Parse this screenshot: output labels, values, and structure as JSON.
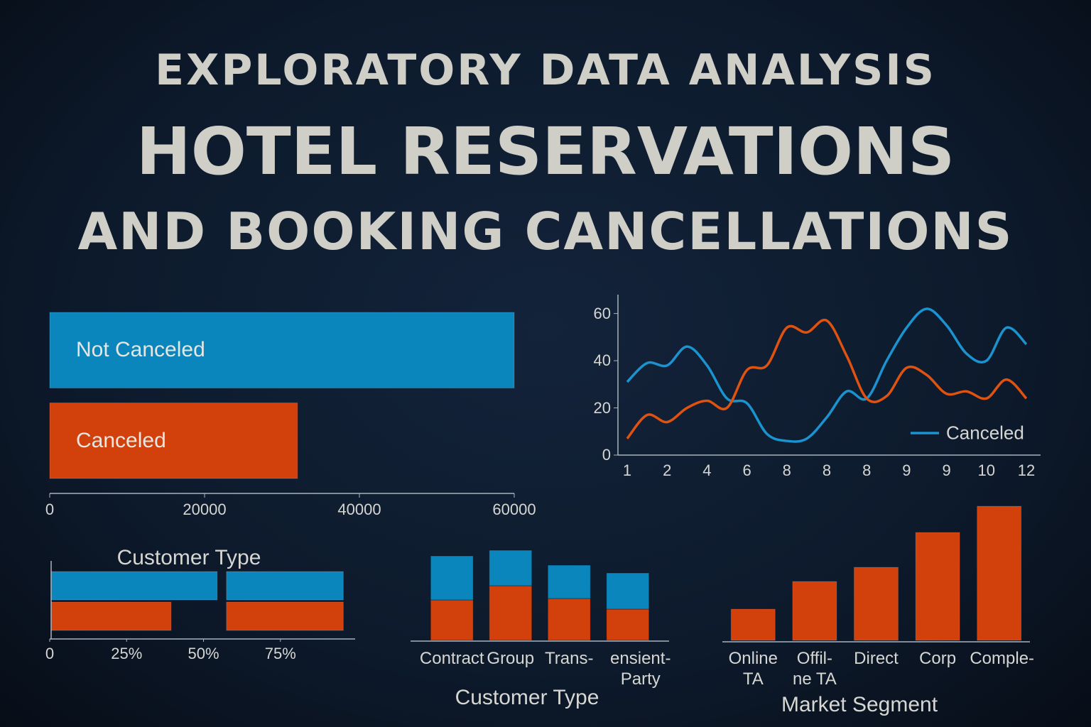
{
  "header": {
    "kicker": "EXPLORATORY DATA ANALYSIS",
    "title": "HOTEL RESERVATIONS",
    "subtitle": "AND BOOKING CANCELLATIONS"
  },
  "chart_data": [
    {
      "type": "hbar",
      "categories": [
        "Not Canceled",
        "Canceled"
      ],
      "values": [
        60000,
        32000
      ],
      "colors": [
        "#0b86bd",
        "#d2400c"
      ],
      "xlim": [
        0,
        60000
      ],
      "xticks": [
        0,
        20000,
        40000,
        60000
      ]
    },
    {
      "type": "line",
      "categories": [
        "1",
        null,
        "2",
        null,
        "4",
        null,
        "6",
        null,
        "8",
        null,
        "8",
        null,
        "8",
        null,
        "9",
        null,
        "9",
        null,
        "10",
        null,
        "12"
      ],
      "series": [
        {
          "name": "Canceled",
          "color": "#1a93cf",
          "values": [
            31,
            39,
            38,
            46,
            38,
            24,
            22,
            9,
            6,
            7,
            16,
            27,
            24,
            40,
            54,
            62,
            55,
            43,
            40,
            54,
            47
          ]
        },
        {
          "color": "#e0520f",
          "values": [
            7,
            17,
            14,
            20,
            23,
            20,
            36,
            38,
            54,
            52,
            57,
            42,
            24,
            25,
            37,
            34,
            26,
            27,
            24,
            32,
            24
          ]
        }
      ],
      "ylim": [
        0,
        68
      ],
      "yticks": [
        0,
        20,
        40,
        60
      ],
      "legend": "lower right"
    },
    {
      "type": "range-hbar",
      "title": "Customer Type",
      "series": [
        {
          "color": "#0b86bd",
          "values": [
            [
              0,
              54
            ],
            [
              57,
              95
            ]
          ]
        },
        {
          "color": "#d2400c",
          "values": [
            [
              0,
              39
            ],
            [
              57,
              95
            ]
          ]
        }
      ],
      "xlim": [
        0,
        100
      ],
      "xticks": [
        0,
        {
          "value": 25,
          "label": "25%"
        },
        {
          "value": 50,
          "label": "50%"
        },
        {
          "value": 75,
          "label": "75%"
        }
      ]
    },
    {
      "type": "stacked-bar",
      "categories": [
        "Contract",
        "Group",
        "Trans-",
        "ensient-\nParty"
      ],
      "xlabel": "Customer Type",
      "series": [
        {
          "color": "#d2400c",
          "values": [
            57,
            77,
            59,
            44
          ]
        },
        {
          "color": "#0b86bd",
          "values": [
            62,
            50,
            47,
            51
          ]
        }
      ],
      "ylim": [
        0,
        130
      ]
    },
    {
      "type": "bar",
      "categories": [
        "Online\nTA",
        "Offil-\nne TA",
        "Direct",
        "Corp",
        "Comple-"
      ],
      "xlabel": "Market Segment",
      "values": [
        44,
        83,
        103,
        152,
        189
      ],
      "color": "#d2400c",
      "ylim": [
        0,
        190
      ]
    }
  ]
}
